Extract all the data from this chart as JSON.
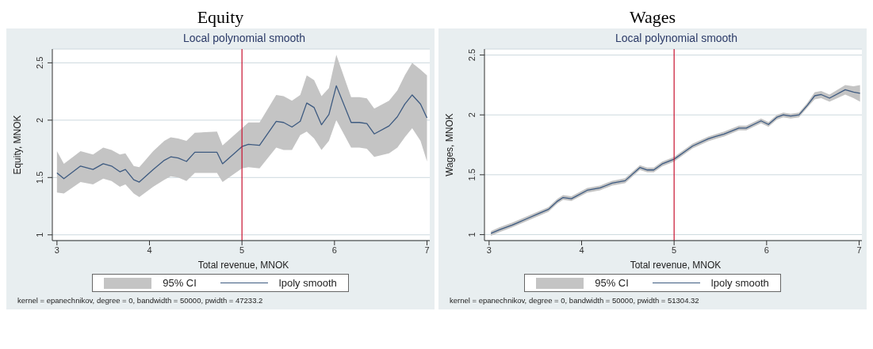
{
  "chart_data": [
    {
      "type": "line",
      "title": "Equity",
      "subtitle": "Local polynomial smooth",
      "xlabel": "Total revenue, MNOK",
      "ylabel": "Equity, MNOK",
      "xlim": [
        2.95,
        7.03
      ],
      "xticks": [
        3,
        4,
        5,
        6,
        7
      ],
      "ylim": [
        0.95,
        2.62
      ],
      "yticks": [
        1,
        1.5,
        2,
        2.5
      ],
      "grid": "y",
      "legend": "bottom",
      "x": [
        3.0,
        3.075,
        3.255,
        3.39,
        3.5,
        3.59,
        3.68,
        3.74,
        3.83,
        3.89,
        4.04,
        4.16,
        4.23,
        4.31,
        4.4,
        4.49,
        4.73,
        4.79,
        5.0,
        5.07,
        5.19,
        5.37,
        5.45,
        5.54,
        5.63,
        5.7,
        5.78,
        5.86,
        5.94,
        6.02,
        6.18,
        6.27,
        6.35,
        6.43,
        6.59,
        6.68,
        6.76,
        6.84,
        6.93,
        7.0
      ],
      "series": [
        {
          "type": "line",
          "name": "lpoly smooth",
          "color": "#3d5a80",
          "lower": [
            1.37,
            1.36,
            1.46,
            1.44,
            1.49,
            1.47,
            1.42,
            1.44,
            1.36,
            1.33,
            1.42,
            1.48,
            1.51,
            1.5,
            1.47,
            1.54,
            1.54,
            1.46,
            1.58,
            1.59,
            1.58,
            1.76,
            1.74,
            1.74,
            1.87,
            1.9,
            1.84,
            1.74,
            1.82,
            2.0,
            1.76,
            1.76,
            1.75,
            1.68,
            1.71,
            1.76,
            1.85,
            1.93,
            1.82,
            1.64
          ],
          "upper": [
            1.73,
            1.62,
            1.73,
            1.7,
            1.76,
            1.74,
            1.7,
            1.71,
            1.6,
            1.59,
            1.73,
            1.82,
            1.85,
            1.84,
            1.82,
            1.89,
            1.9,
            1.78,
            1.93,
            1.98,
            1.98,
            2.22,
            2.21,
            2.17,
            2.22,
            2.39,
            2.35,
            2.21,
            2.28,
            2.57,
            2.2,
            2.2,
            2.19,
            2.1,
            2.17,
            2.26,
            2.39,
            2.5,
            2.44,
            2.39
          ],
          "values": [
            1.54,
            1.49,
            1.6,
            1.57,
            1.62,
            1.6,
            1.55,
            1.57,
            1.48,
            1.46,
            1.57,
            1.65,
            1.68,
            1.67,
            1.64,
            1.72,
            1.72,
            1.62,
            1.77,
            1.79,
            1.78,
            1.99,
            1.98,
            1.94,
            1.99,
            2.15,
            2.11,
            1.96,
            2.05,
            2.3,
            1.98,
            1.98,
            1.97,
            1.88,
            1.95,
            2.03,
            2.14,
            2.22,
            2.14,
            2.02
          ]
        }
      ],
      "ref_lines": [
        {
          "axis": "x",
          "value": 5,
          "color": "#c8102e"
        }
      ],
      "annotations": [
        "95% CI",
        "kernel = epanechnikov, degree = 0, bandwidth = 50000, pwidth = 47233.2"
      ]
    },
    {
      "type": "line",
      "title": "Wages",
      "subtitle": "Local polynomial smooth",
      "xlabel": "Total revenue, MNOK",
      "ylabel": "Wages, MNOK",
      "xlim": [
        2.95,
        7.03
      ],
      "xticks": [
        3,
        4,
        5,
        6,
        7
      ],
      "ylim": [
        0.95,
        2.55
      ],
      "yticks": [
        1,
        1.5,
        2,
        2.5
      ],
      "grid": "y",
      "legend": "bottom",
      "x": [
        3.02,
        3.11,
        3.25,
        3.31,
        3.4,
        3.55,
        3.64,
        3.74,
        3.8,
        3.89,
        4.06,
        4.2,
        4.33,
        4.47,
        4.63,
        4.71,
        4.78,
        4.87,
        5.0,
        5.11,
        5.2,
        5.37,
        5.45,
        5.54,
        5.7,
        5.78,
        5.86,
        5.94,
        6.02,
        6.11,
        6.18,
        6.26,
        6.35,
        6.44,
        6.52,
        6.59,
        6.68,
        6.85,
        6.94,
        7.01
      ],
      "series": [
        {
          "type": "line",
          "name": "lpoly smooth",
          "color": "#3d5a80",
          "lower": [
            0.99,
            1.02,
            1.06,
            1.08,
            1.11,
            1.16,
            1.19,
            1.26,
            1.29,
            1.28,
            1.35,
            1.37,
            1.41,
            1.43,
            1.54,
            1.52,
            1.52,
            1.57,
            1.61,
            1.67,
            1.72,
            1.78,
            1.8,
            1.82,
            1.87,
            1.87,
            1.9,
            1.93,
            1.9,
            1.96,
            1.98,
            1.97,
            1.98,
            2.06,
            2.13,
            2.14,
            2.11,
            2.17,
            2.14,
            2.11
          ],
          "upper": [
            1.03,
            1.06,
            1.1,
            1.12,
            1.15,
            1.2,
            1.23,
            1.3,
            1.33,
            1.32,
            1.39,
            1.41,
            1.45,
            1.47,
            1.58,
            1.56,
            1.56,
            1.61,
            1.65,
            1.71,
            1.76,
            1.82,
            1.84,
            1.86,
            1.91,
            1.91,
            1.94,
            1.97,
            1.94,
            2.0,
            2.02,
            2.01,
            2.02,
            2.1,
            2.19,
            2.2,
            2.17,
            2.25,
            2.24,
            2.25
          ],
          "values": [
            1.01,
            1.04,
            1.08,
            1.1,
            1.13,
            1.18,
            1.21,
            1.28,
            1.31,
            1.3,
            1.37,
            1.39,
            1.43,
            1.45,
            1.56,
            1.54,
            1.54,
            1.59,
            1.63,
            1.69,
            1.74,
            1.8,
            1.82,
            1.84,
            1.89,
            1.89,
            1.92,
            1.95,
            1.92,
            1.98,
            2.0,
            1.99,
            2.0,
            2.08,
            2.16,
            2.17,
            2.14,
            2.21,
            2.19,
            2.18
          ]
        }
      ],
      "ref_lines": [
        {
          "axis": "x",
          "value": 5,
          "color": "#c8102e"
        }
      ],
      "annotations": [
        "95% CI",
        "kernel = epanechnikov, degree = 0, bandwidth = 50000, pwidth = 51304.32"
      ]
    }
  ]
}
